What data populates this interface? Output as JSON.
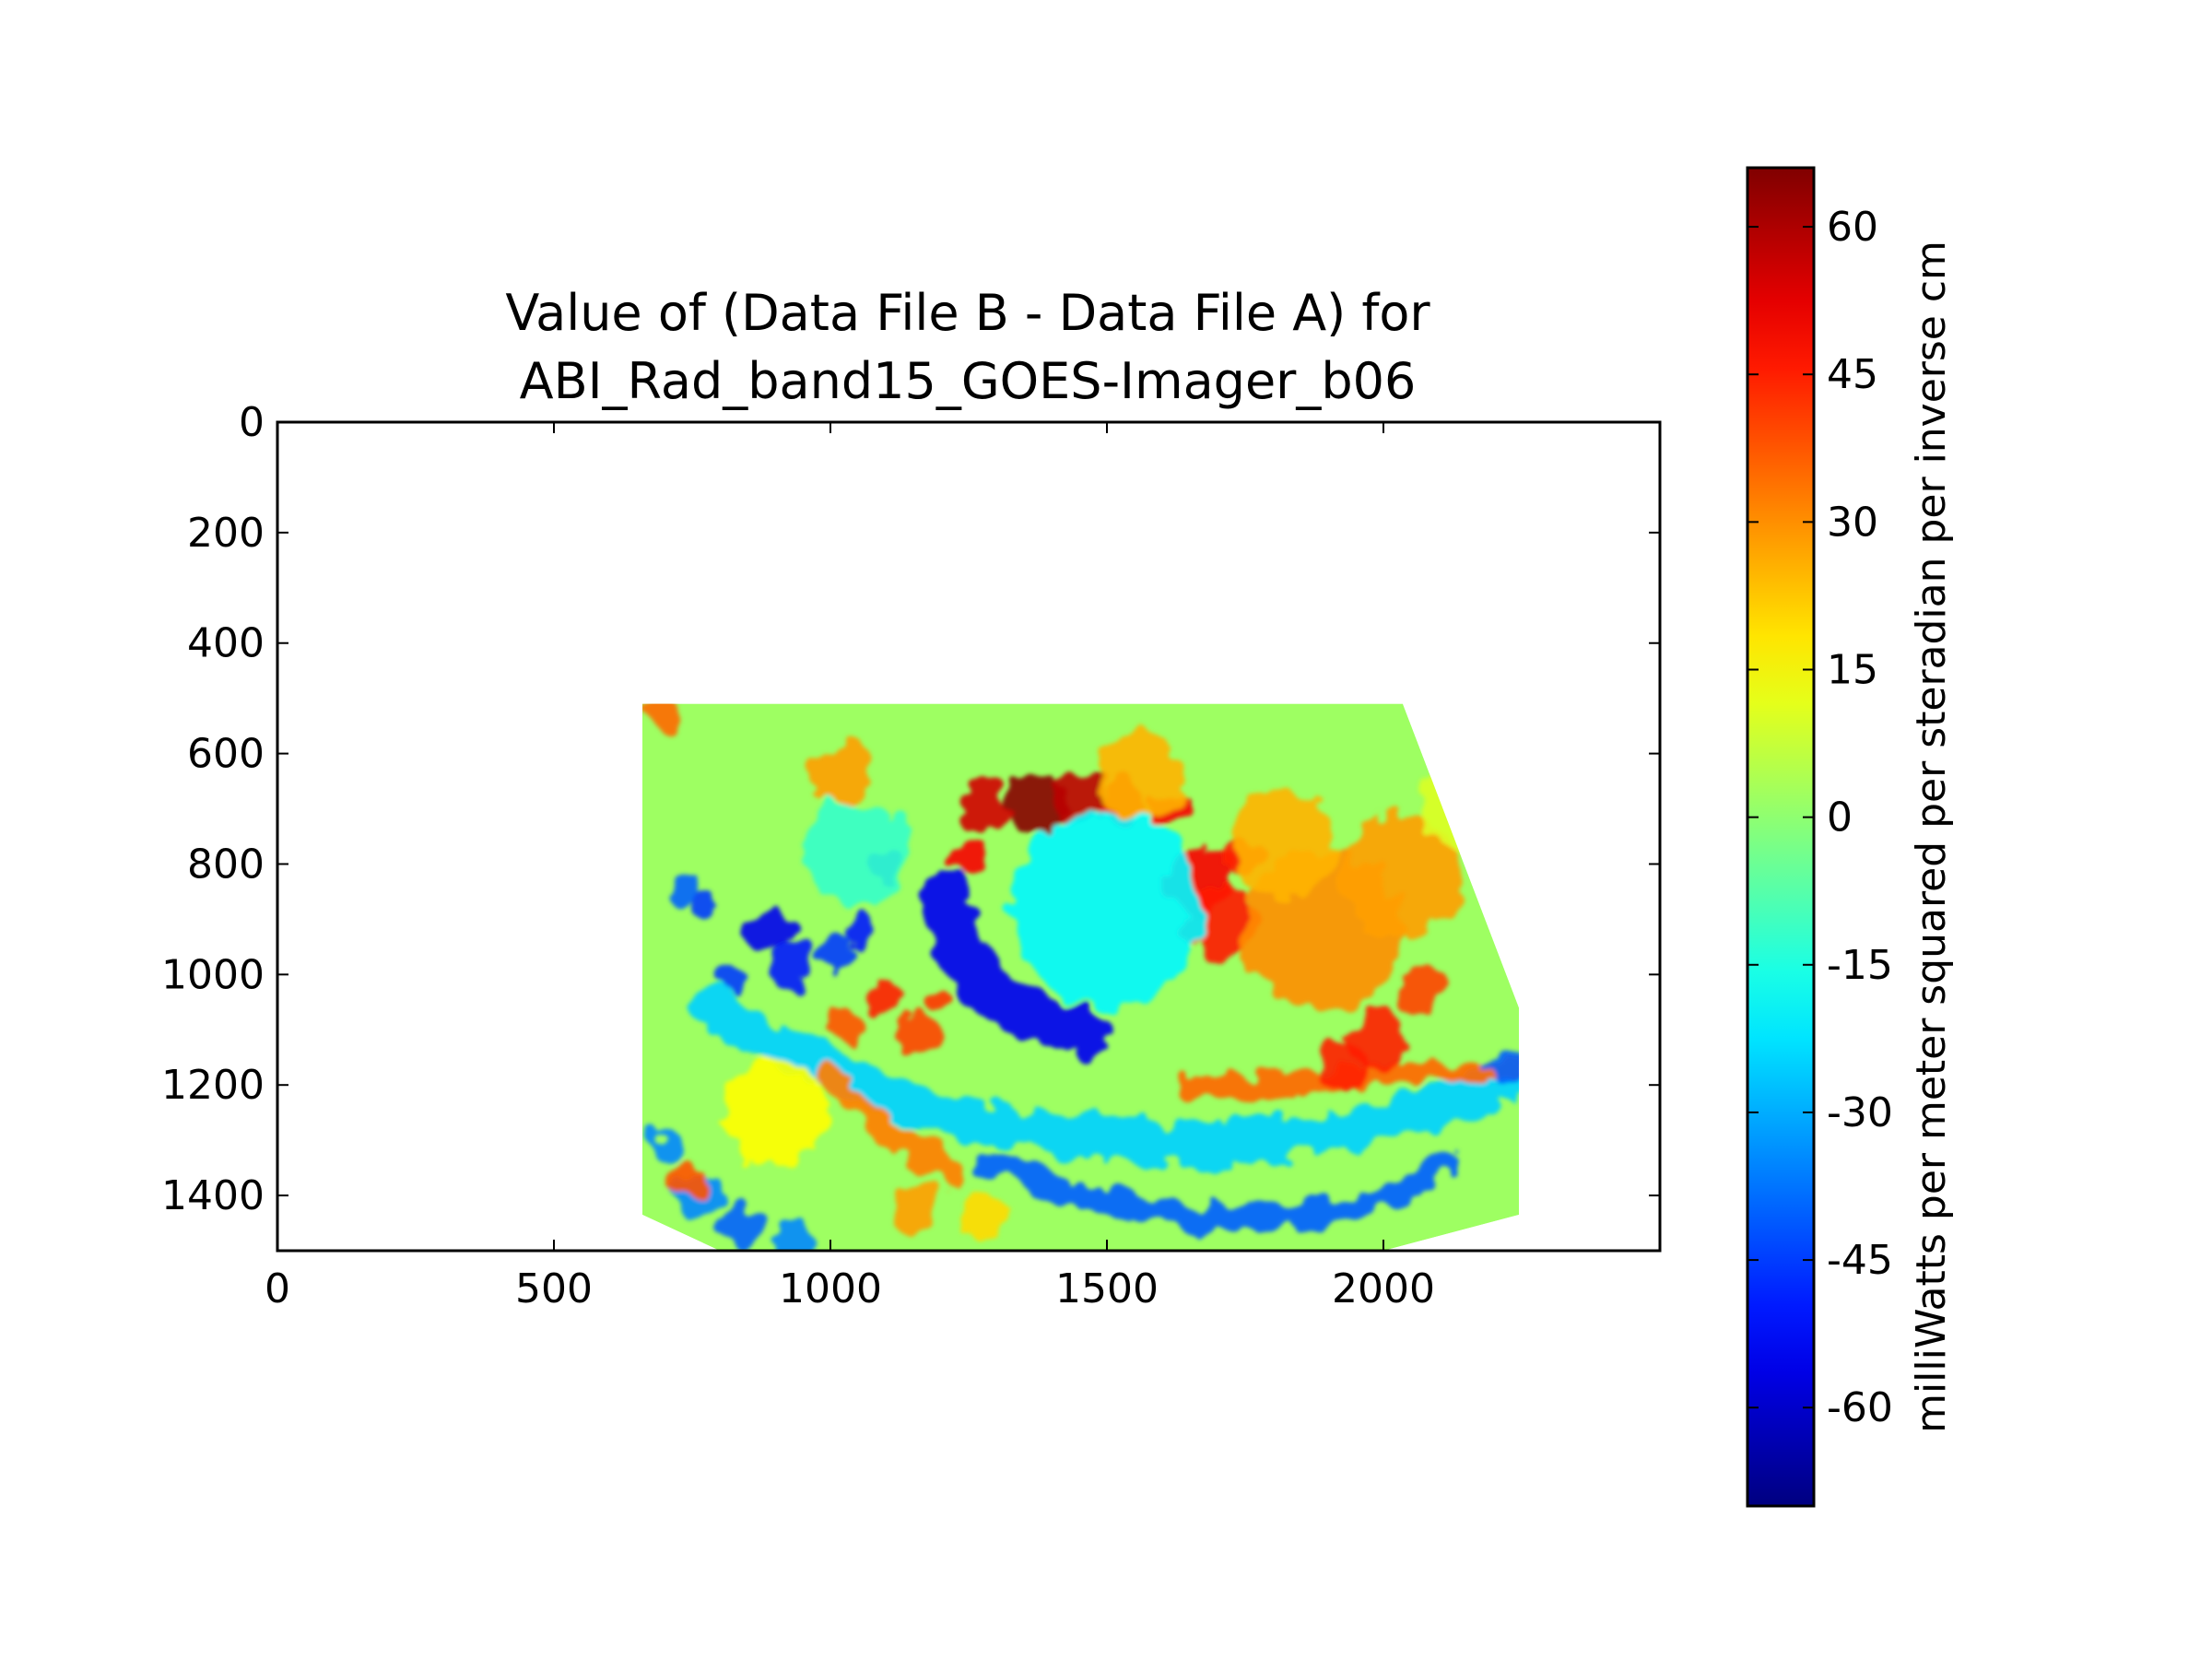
{
  "chart_data": {
    "type": "heatmap",
    "title_lines": [
      "Value of (Data File B - Data File A) for",
      "ABI_Rad_band15_GOES-Imager_b06"
    ],
    "xlabel": "",
    "ylabel": "",
    "xlim": [
      0,
      2500
    ],
    "ylim": [
      1500,
      0
    ],
    "y_inverted": true,
    "x_ticks": [
      0,
      500,
      1000,
      1500,
      2000
    ],
    "y_ticks": [
      0,
      200,
      400,
      600,
      800,
      1000,
      1200,
      1400
    ],
    "grid": false,
    "colormap": "jet",
    "colorbar": {
      "label": "milliWatts per meter squared per steradian per inverse cm",
      "range": [
        -70,
        66
      ],
      "ticks": [
        60,
        45,
        30,
        15,
        0,
        -15,
        -30,
        -45,
        -60
      ],
      "tick_labels": [
        "60",
        "45",
        "30",
        "15",
        "0",
        "-15",
        "-30",
        "-45",
        "-60"
      ],
      "placement": "right"
    },
    "data_region": {
      "outline_polygon": [
        [
          660,
          510
        ],
        [
          2035,
          510
        ],
        [
          2245,
          1060
        ],
        [
          2245,
          1435
        ],
        [
          2000,
          1500
        ],
        [
          800,
          1500
        ],
        [
          660,
          1435
        ]
      ],
      "background_value": 2
    },
    "features": [
      {
        "kind": "band",
        "value": -55,
        "points": [
          [
            1205,
            860
          ],
          [
            1230,
            960
          ],
          [
            1300,
            1040
          ],
          [
            1380,
            1085
          ],
          [
            1460,
            1105
          ]
        ],
        "width": 55
      },
      {
        "kind": "band",
        "value": -40,
        "points": [
          [
            1290,
            1340
          ],
          [
            1450,
            1400
          ],
          [
            1640,
            1440
          ],
          [
            1860,
            1440
          ],
          [
            2020,
            1400
          ],
          [
            2120,
            1340
          ]
        ],
        "width": 28
      },
      {
        "kind": "band",
        "value": -25,
        "points": [
          [
            780,
            1060
          ],
          [
            950,
            1150
          ],
          [
            1150,
            1240
          ],
          [
            1400,
            1290
          ],
          [
            1650,
            1310
          ],
          [
            1900,
            1290
          ],
          [
            2100,
            1240
          ],
          [
            2240,
            1190
          ]
        ],
        "width": 45
      },
      {
        "kind": "band",
        "value": 32,
        "points": [
          [
            1000,
            1180
          ],
          [
            1070,
            1260
          ],
          [
            1150,
            1320
          ],
          [
            1230,
            1360
          ]
        ],
        "width": 30
      },
      {
        "kind": "band",
        "value": 35,
        "points": [
          [
            1640,
            1205
          ],
          [
            1760,
            1200
          ],
          [
            1880,
            1195
          ],
          [
            2000,
            1180
          ],
          [
            2150,
            1175
          ],
          [
            2240,
            1168
          ]
        ],
        "width": 24
      },
      {
        "kind": "blob",
        "value": 65,
        "center": [
          1375,
          690
        ],
        "radius": 34
      },
      {
        "kind": "blob",
        "value": 55,
        "center": [
          1280,
          700
        ],
        "radius": 28
      },
      {
        "kind": "blob",
        "value": 58,
        "center": [
          1450,
          680
        ],
        "radius": 30
      },
      {
        "kind": "blob",
        "value": 52,
        "center": [
          1530,
          690
        ],
        "radius": 24
      },
      {
        "kind": "blob",
        "value": 50,
        "center": [
          1610,
          700
        ],
        "radius": 22
      },
      {
        "kind": "blob",
        "value": 50,
        "center": [
          1665,
          830
        ],
        "radius": 38
      },
      {
        "kind": "blob",
        "value": 46,
        "center": [
          1710,
          905
        ],
        "radius": 42
      },
      {
        "kind": "blob",
        "value": 45,
        "center": [
          1735,
          785
        ],
        "radius": 24
      },
      {
        "kind": "blob",
        "value": 50,
        "center": [
          1250,
          790
        ],
        "radius": 22
      },
      {
        "kind": "blob",
        "value": 45,
        "center": [
          1990,
          1120
        ],
        "radius": 34
      },
      {
        "kind": "blob",
        "value": 45,
        "center": [
          1925,
          1165
        ],
        "radius": 28
      },
      {
        "kind": "blob",
        "value": 40,
        "center": [
          2070,
          1020
        ],
        "radius": 28
      },
      {
        "kind": "blob",
        "value": 30,
        "center": [
          1890,
          920
        ],
        "radius": 90
      },
      {
        "kind": "blob",
        "value": 28,
        "center": [
          2030,
          820
        ],
        "radius": 70
      },
      {
        "kind": "blob",
        "value": 25,
        "center": [
          1820,
          760
        ],
        "radius": 60
      },
      {
        "kind": "blob",
        "value": 40,
        "center": [
          1160,
          1105
        ],
        "radius": 22
      },
      {
        "kind": "blob",
        "value": 45,
        "center": [
          1095,
          1040
        ],
        "radius": 20
      },
      {
        "kind": "blob",
        "value": 38,
        "center": [
          1030,
          1100
        ],
        "radius": 18
      },
      {
        "kind": "blob",
        "value": 42,
        "center": [
          1200,
          1045
        ],
        "radius": 16
      },
      {
        "kind": "blob",
        "value": -55,
        "center": [
          890,
          920
        ],
        "radius": 24
      },
      {
        "kind": "blob",
        "value": -50,
        "center": [
          930,
          985
        ],
        "radius": 26
      },
      {
        "kind": "blob",
        "value": -45,
        "center": [
          1010,
          960
        ],
        "radius": 20
      },
      {
        "kind": "blob",
        "value": -50,
        "center": [
          1055,
          920
        ],
        "radius": 18
      },
      {
        "kind": "blob",
        "value": -45,
        "center": [
          820,
          1010
        ],
        "radius": 18
      },
      {
        "kind": "blob",
        "value": -40,
        "center": [
          730,
          850
        ],
        "radius": 16
      },
      {
        "kind": "blob",
        "value": -45,
        "center": [
          770,
          870
        ],
        "radius": 14
      },
      {
        "kind": "blob",
        "value": -45,
        "center": [
          1100,
          805
        ],
        "radius": 18
      },
      {
        "kind": "blob",
        "value": -40,
        "center": [
          2225,
          1170
        ],
        "radius": 20
      },
      {
        "kind": "blob",
        "value": -40,
        "center": [
          840,
          1450
        ],
        "radius": 22
      },
      {
        "kind": "blob",
        "value": -35,
        "center": [
          760,
          1400
        ],
        "radius": 26
      },
      {
        "kind": "blob",
        "value": -35,
        "center": [
          700,
          1310
        ],
        "radius": 18
      },
      {
        "kind": "blob",
        "value": -35,
        "center": [
          935,
          1485
        ],
        "radius": 20
      },
      {
        "kind": "blob",
        "value": 35,
        "center": [
          700,
          530
        ],
        "radius": 18
      },
      {
        "kind": "blob",
        "value": 38,
        "center": [
          745,
          1375
        ],
        "radius": 20
      },
      {
        "kind": "blob",
        "value": 28,
        "center": [
          1160,
          1420
        ],
        "radius": 26
      },
      {
        "kind": "blob",
        "value": 20,
        "center": [
          1280,
          1440
        ],
        "radius": 26
      },
      {
        "kind": "blob",
        "value": 28,
        "center": [
          1020,
          635
        ],
        "radius": 34
      },
      {
        "kind": "blob",
        "value": -12,
        "center": [
          1050,
          780
        ],
        "radius": 60
      },
      {
        "kind": "blob",
        "value": -20,
        "center": [
          1500,
          880
        ],
        "radius": 110
      },
      {
        "kind": "blob",
        "value": 25,
        "center": [
          1560,
          640
        ],
        "radius": 50
      },
      {
        "kind": "blob",
        "value": 10,
        "center": [
          2160,
          680
        ],
        "radius": 60
      },
      {
        "kind": "blob",
        "value": 15,
        "center": [
          900,
          1250
        ],
        "radius": 60
      }
    ]
  }
}
